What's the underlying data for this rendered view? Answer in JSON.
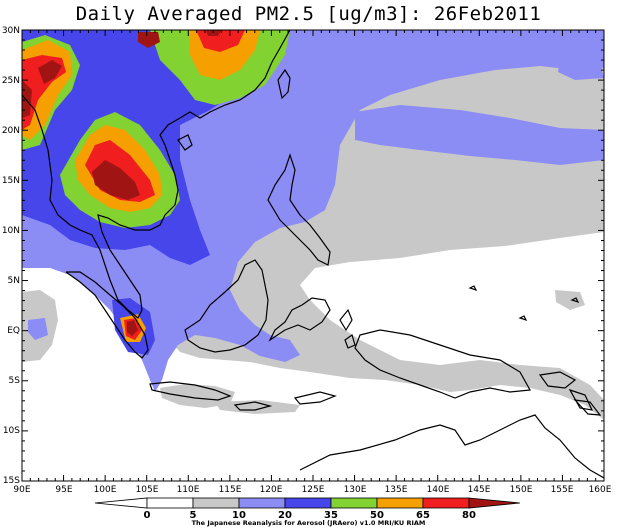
{
  "title": "Daily Averaged PM2.5 [ug/m3]: 26Feb2011",
  "credit": "The Japanese Reanalysis for Aerosol (JRAero) v1.0 MRI/KU RIAM",
  "lat_labels": [
    "30N",
    "25N",
    "20N",
    "15N",
    "10N",
    "5N",
    "EQ",
    "5S",
    "10S",
    "15S"
  ],
  "lon_labels": [
    "90E",
    "95E",
    "100E",
    "105E",
    "110E",
    "115E",
    "120E",
    "125E",
    "130E",
    "135E",
    "140E",
    "145E",
    "150E",
    "155E",
    "160E"
  ],
  "colorbar": {
    "ticks": [
      "0",
      "5",
      "10",
      "20",
      "35",
      "50",
      "65",
      "80"
    ],
    "colors": [
      "#ffffff",
      "#c8c8c8",
      "#8c8cf5",
      "#4646eb",
      "#82d232",
      "#f5a000",
      "#f01e1e",
      "#a01414"
    ]
  }
}
